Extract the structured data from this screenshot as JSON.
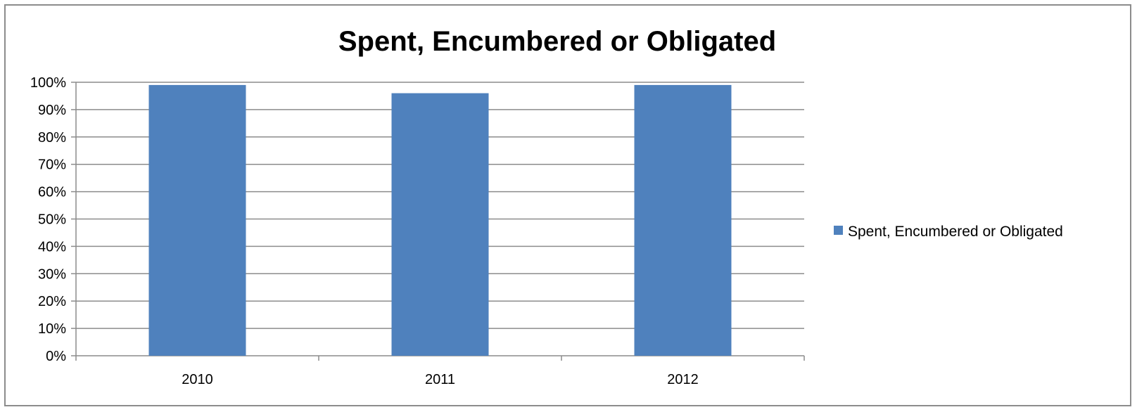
{
  "chart_data": {
    "type": "bar",
    "title": "Spent, Encumbered or Obligated",
    "xlabel": "",
    "ylabel": "",
    "categories": [
      "2010",
      "2011",
      "2012"
    ],
    "series": [
      {
        "name": "Spent, Encumbered or Obligated",
        "values": [
          99,
          96,
          99
        ],
        "color": "#4f81bd"
      }
    ],
    "ylim": [
      0,
      100
    ],
    "yticks": [
      0,
      10,
      20,
      30,
      40,
      50,
      60,
      70,
      80,
      90,
      100
    ],
    "ytick_labels": [
      "0%",
      "10%",
      "20%",
      "30%",
      "40%",
      "50%",
      "60%",
      "70%",
      "80%",
      "90%",
      "100%"
    ],
    "grid": true,
    "legend_position": "right"
  }
}
